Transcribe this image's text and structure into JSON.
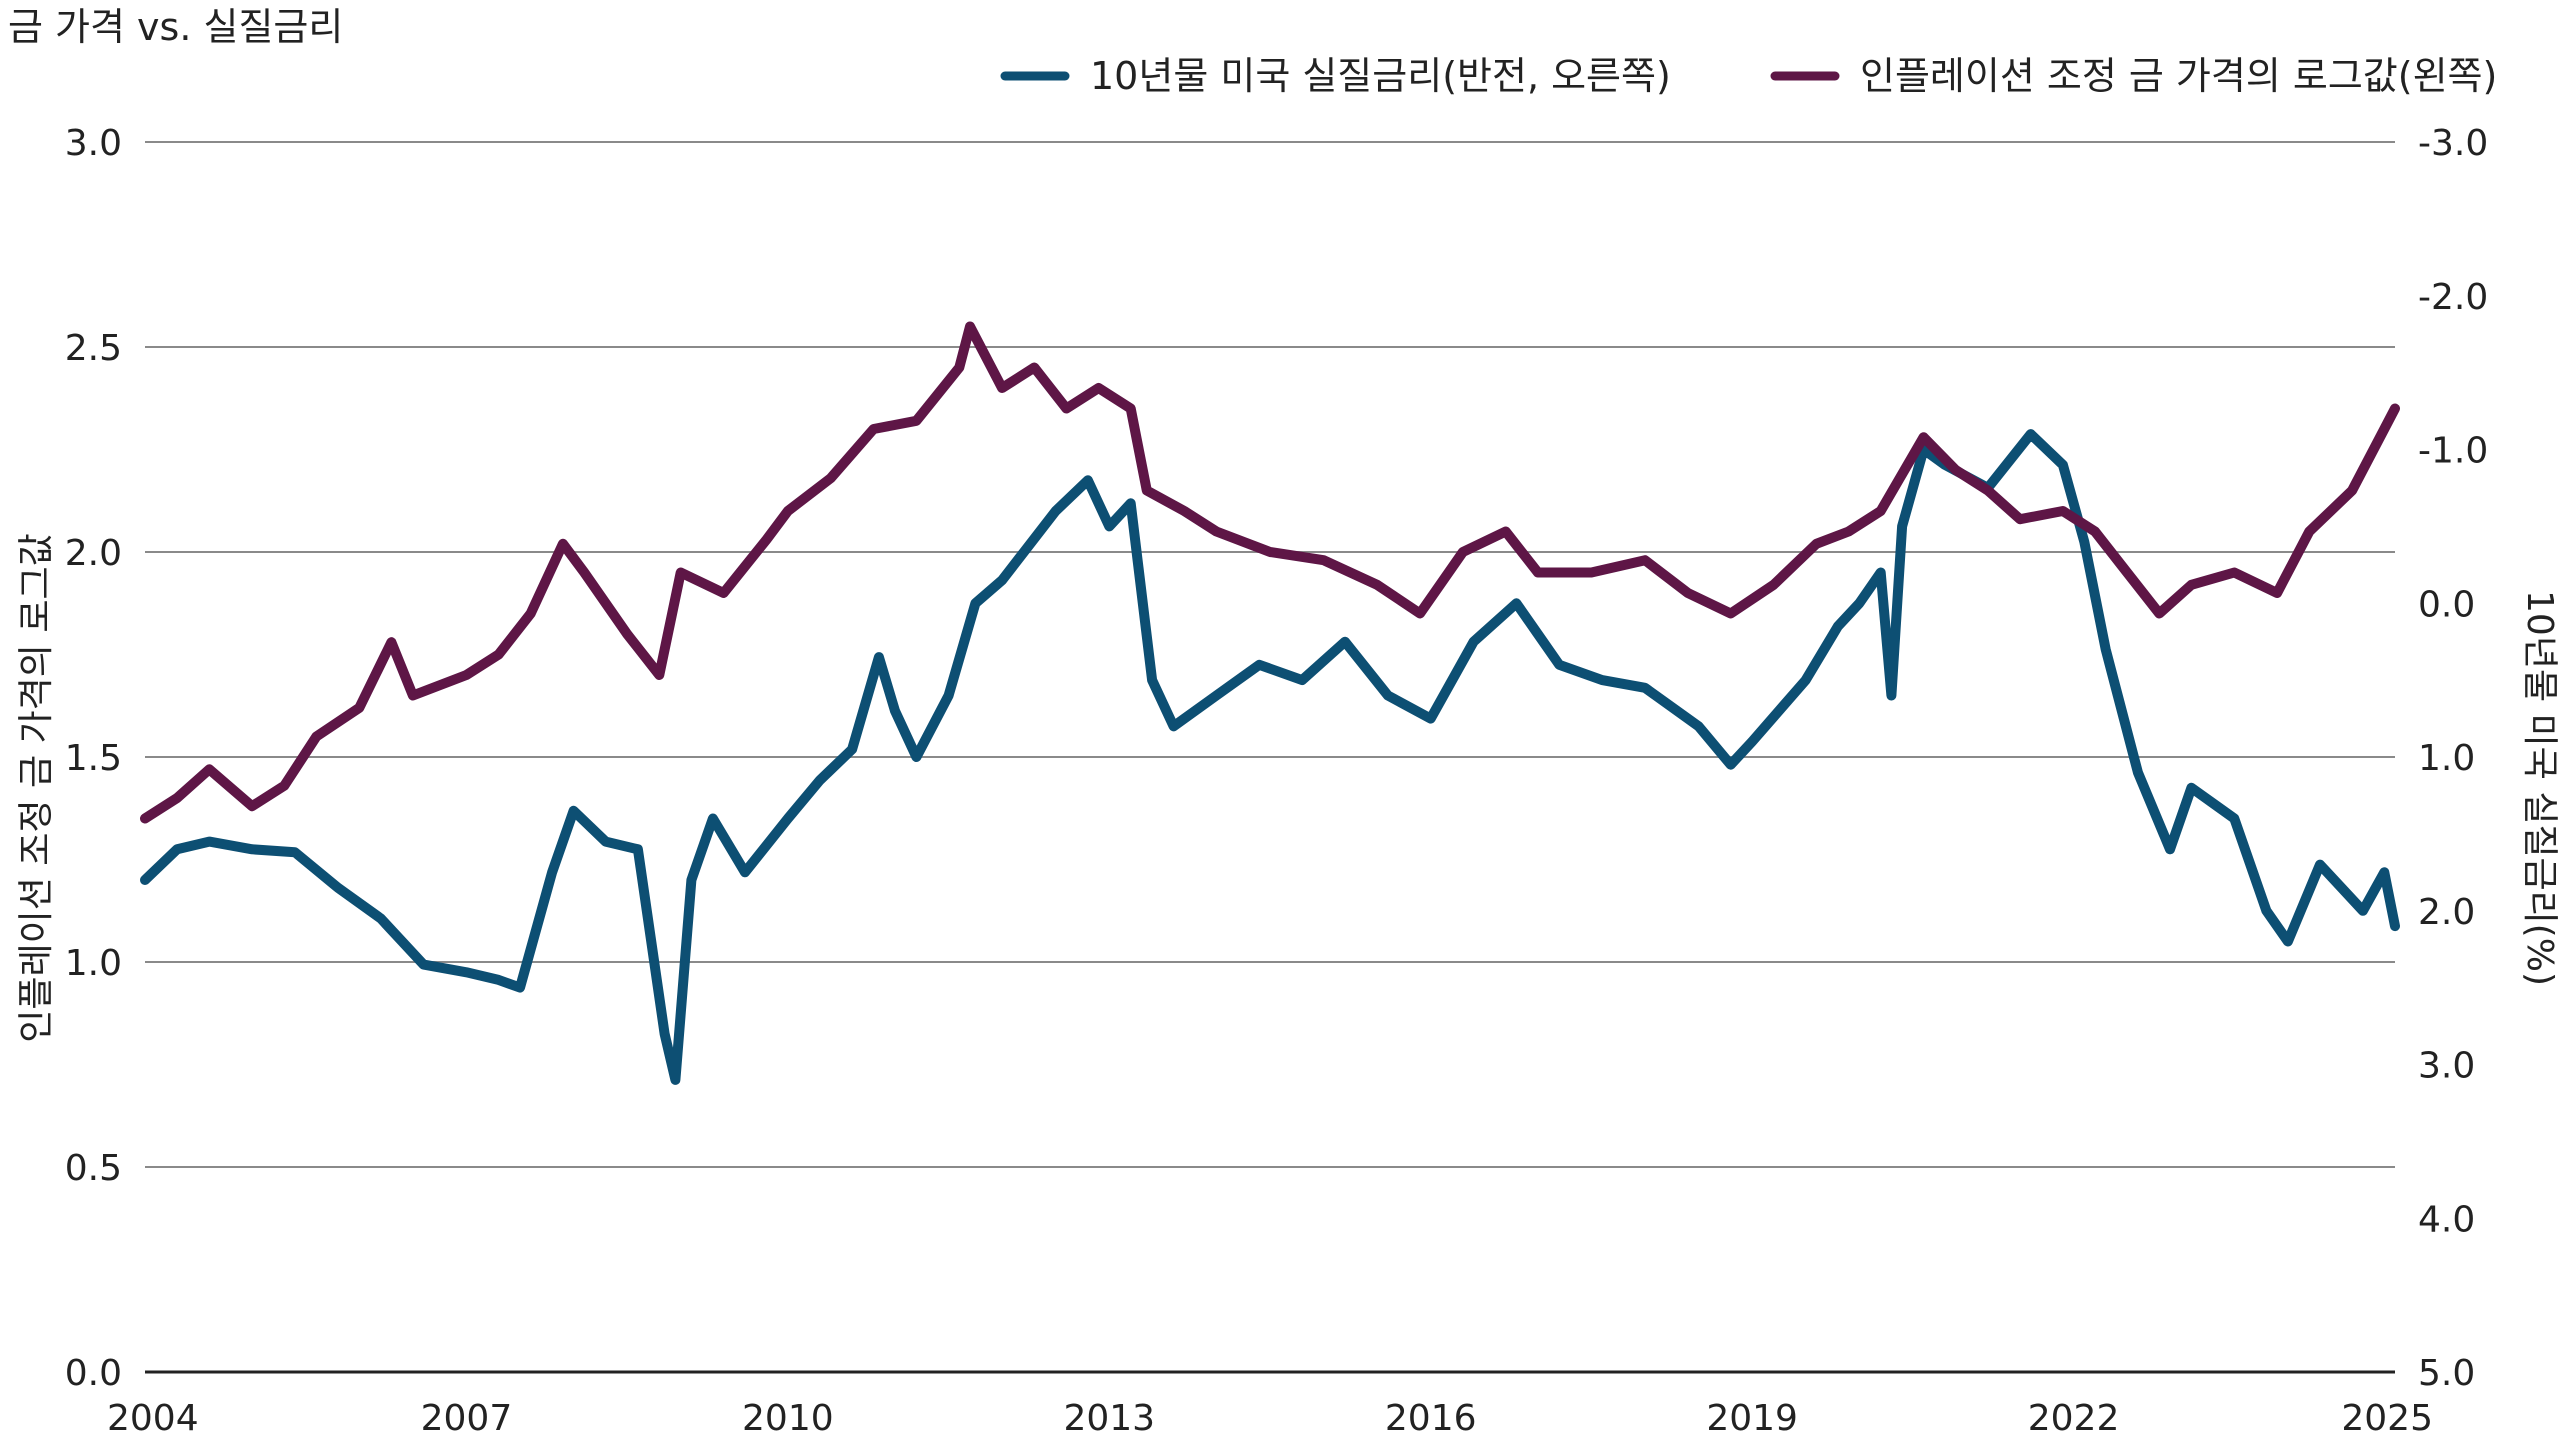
{
  "chart_data": {
    "type": "line",
    "title": "금 가격 vs. 실질금리",
    "ylabel_left": "인플레이션 조정 금 가격의 로그값",
    "ylabel_right": "10년물 미국 실질금리(%)",
    "x_ticks": [
      "2004",
      "2007",
      "2010",
      "2013",
      "2016",
      "2019",
      "2022",
      "2025"
    ],
    "xlim": [
      2004,
      2025
    ],
    "left_ticks": [
      "0.0",
      "0.5",
      "1.0",
      "1.5",
      "2.0",
      "2.5",
      "3.0"
    ],
    "ylim_left": [
      0,
      3
    ],
    "right_ticks": [
      "5.0",
      "4.0",
      "3.0",
      "2.0",
      "1.0",
      "0.0",
      "-1.0",
      "-2.0",
      "-3.0"
    ],
    "ylim_right": [
      5,
      -3
    ],
    "right_axis_inverted": true,
    "grid": true,
    "legend_position": "top-right",
    "series": [
      {
        "name": "10년물 미국 실질금리(반전, 오른쪽)",
        "axis": "right",
        "color": "#0d4f73",
        "points": [
          [
            2004.0,
            1.8
          ],
          [
            2004.3,
            1.6
          ],
          [
            2004.6,
            1.55
          ],
          [
            2005.0,
            1.6
          ],
          [
            2005.4,
            1.62
          ],
          [
            2005.8,
            1.85
          ],
          [
            2006.2,
            2.05
          ],
          [
            2006.6,
            2.35
          ],
          [
            2007.0,
            2.4
          ],
          [
            2007.3,
            2.45
          ],
          [
            2007.5,
            2.5
          ],
          [
            2007.8,
            1.75
          ],
          [
            2008.0,
            1.35
          ],
          [
            2008.3,
            1.55
          ],
          [
            2008.6,
            1.6
          ],
          [
            2008.85,
            2.8
          ],
          [
            2008.95,
            3.1
          ],
          [
            2009.1,
            1.8
          ],
          [
            2009.3,
            1.4
          ],
          [
            2009.6,
            1.75
          ],
          [
            2010.0,
            1.4
          ],
          [
            2010.3,
            1.15
          ],
          [
            2010.6,
            0.95
          ],
          [
            2010.85,
            0.35
          ],
          [
            2011.0,
            0.7
          ],
          [
            2011.2,
            1.0
          ],
          [
            2011.5,
            0.6
          ],
          [
            2011.75,
            0.0
          ],
          [
            2012.0,
            -0.15
          ],
          [
            2012.5,
            -0.6
          ],
          [
            2012.8,
            -0.8
          ],
          [
            2013.0,
            -0.5
          ],
          [
            2013.2,
            -0.65
          ],
          [
            2013.4,
            0.5
          ],
          [
            2013.6,
            0.8
          ],
          [
            2014.0,
            0.6
          ],
          [
            2014.4,
            0.4
          ],
          [
            2014.8,
            0.5
          ],
          [
            2015.2,
            0.25
          ],
          [
            2015.6,
            0.6
          ],
          [
            2016.0,
            0.75
          ],
          [
            2016.4,
            0.25
          ],
          [
            2016.8,
            0.0
          ],
          [
            2017.2,
            0.4
          ],
          [
            2017.6,
            0.5
          ],
          [
            2018.0,
            0.55
          ],
          [
            2018.5,
            0.8
          ],
          [
            2018.8,
            1.05
          ],
          [
            2019.0,
            0.9
          ],
          [
            2019.5,
            0.5
          ],
          [
            2019.8,
            0.15
          ],
          [
            2020.0,
            0.0
          ],
          [
            2020.2,
            -0.2
          ],
          [
            2020.3,
            0.6
          ],
          [
            2020.4,
            -0.5
          ],
          [
            2020.6,
            -1.0
          ],
          [
            2020.8,
            -0.9
          ],
          [
            2021.2,
            -0.75
          ],
          [
            2021.6,
            -1.1
          ],
          [
            2021.9,
            -0.9
          ],
          [
            2022.1,
            -0.4
          ],
          [
            2022.3,
            0.3
          ],
          [
            2022.6,
            1.1
          ],
          [
            2022.9,
            1.6
          ],
          [
            2023.1,
            1.2
          ],
          [
            2023.5,
            1.4
          ],
          [
            2023.8,
            2.0
          ],
          [
            2024.0,
            2.2
          ],
          [
            2024.3,
            1.7
          ],
          [
            2024.7,
            2.0
          ],
          [
            2024.9,
            1.75
          ],
          [
            2025.0,
            2.1
          ]
        ]
      },
      {
        "name": "인플레이션 조정 금 가격의 로그값(왼쪽)",
        "axis": "left",
        "color": "#5e1646",
        "points": [
          [
            2004.0,
            1.35
          ],
          [
            2004.3,
            1.4
          ],
          [
            2004.6,
            1.47
          ],
          [
            2005.0,
            1.38
          ],
          [
            2005.3,
            1.43
          ],
          [
            2005.6,
            1.55
          ],
          [
            2006.0,
            1.62
          ],
          [
            2006.3,
            1.78
          ],
          [
            2006.5,
            1.65
          ],
          [
            2007.0,
            1.7
          ],
          [
            2007.3,
            1.75
          ],
          [
            2007.6,
            1.85
          ],
          [
            2007.9,
            2.02
          ],
          [
            2008.1,
            1.95
          ],
          [
            2008.5,
            1.8
          ],
          [
            2008.8,
            1.7
          ],
          [
            2009.0,
            1.95
          ],
          [
            2009.4,
            1.9
          ],
          [
            2009.8,
            2.03
          ],
          [
            2010.0,
            2.1
          ],
          [
            2010.4,
            2.18
          ],
          [
            2010.8,
            2.3
          ],
          [
            2011.2,
            2.32
          ],
          [
            2011.6,
            2.45
          ],
          [
            2011.7,
            2.55
          ],
          [
            2012.0,
            2.4
          ],
          [
            2012.3,
            2.45
          ],
          [
            2012.6,
            2.35
          ],
          [
            2012.9,
            2.4
          ],
          [
            2013.2,
            2.35
          ],
          [
            2013.35,
            2.15
          ],
          [
            2013.7,
            2.1
          ],
          [
            2014.0,
            2.05
          ],
          [
            2014.5,
            2.0
          ],
          [
            2015.0,
            1.98
          ],
          [
            2015.5,
            1.92
          ],
          [
            2015.9,
            1.85
          ],
          [
            2016.3,
            2.0
          ],
          [
            2016.7,
            2.05
          ],
          [
            2017.0,
            1.95
          ],
          [
            2017.5,
            1.95
          ],
          [
            2018.0,
            1.98
          ],
          [
            2018.4,
            1.9
          ],
          [
            2018.8,
            1.85
          ],
          [
            2019.2,
            1.92
          ],
          [
            2019.6,
            2.02
          ],
          [
            2019.9,
            2.05
          ],
          [
            2020.2,
            2.1
          ],
          [
            2020.6,
            2.28
          ],
          [
            2020.9,
            2.2
          ],
          [
            2021.2,
            2.15
          ],
          [
            2021.5,
            2.08
          ],
          [
            2021.9,
            2.1
          ],
          [
            2022.2,
            2.05
          ],
          [
            2022.5,
            1.95
          ],
          [
            2022.8,
            1.85
          ],
          [
            2023.1,
            1.92
          ],
          [
            2023.5,
            1.95
          ],
          [
            2023.9,
            1.9
          ],
          [
            2024.2,
            2.05
          ],
          [
            2024.6,
            2.15
          ],
          [
            2024.9,
            2.3
          ],
          [
            2025.0,
            2.35
          ]
        ]
      }
    ]
  }
}
